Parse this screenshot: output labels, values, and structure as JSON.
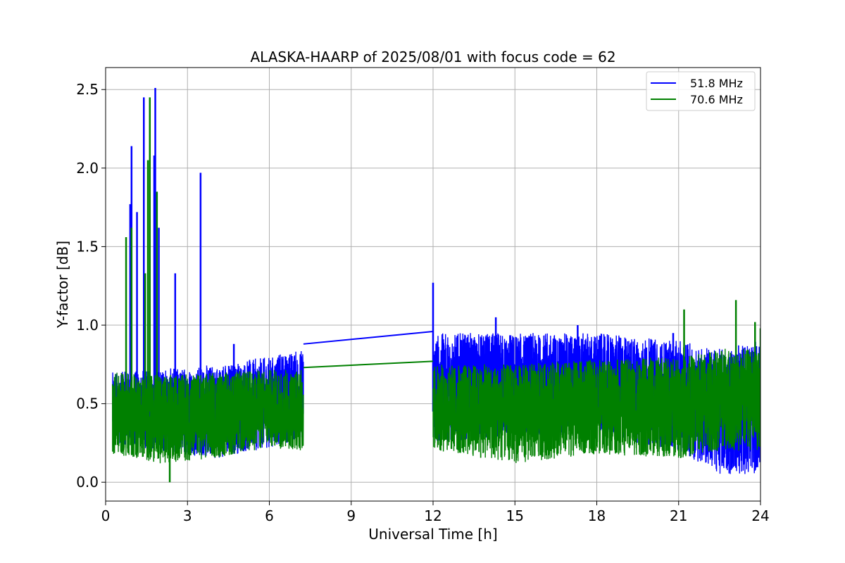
{
  "chart_data": {
    "type": "line",
    "title": "ALASKA-HAARP of 2025/08/01 with focus code = 62",
    "xlabel": "Universal Time [h]",
    "ylabel": "Y-factor [dB]",
    "xlim": [
      0,
      24
    ],
    "ylim": [
      -0.12,
      2.64
    ],
    "xticks": [
      0,
      3,
      6,
      9,
      12,
      15,
      18,
      21,
      24
    ],
    "xtick_labels": [
      "0",
      "3",
      "6",
      "9",
      "12",
      "15",
      "18",
      "21",
      "24"
    ],
    "yticks": [
      0.0,
      0.5,
      1.0,
      1.5,
      2.0,
      2.5
    ],
    "ytick_labels": [
      "0.0",
      "0.5",
      "1.0",
      "1.5",
      "2.0",
      "2.5"
    ],
    "grid": true,
    "legend_position": "top-right",
    "series": [
      {
        "name": "51.8 MHz",
        "color": "#0000ff",
        "segments": [
          {
            "x_range": [
              0.25,
              7.25
            ],
            "band_low": [
              0.25,
              0.2,
              0.15,
              0.22,
              0.28
            ],
            "band_high": [
              0.7,
              0.72,
              0.75,
              0.8,
              0.85
            ],
            "band_knots": [
              0.25,
              2,
              4,
              6,
              7.25
            ]
          },
          {
            "x_range": [
              12.0,
              24.0
            ],
            "band_low": [
              0.25,
              0.3,
              0.3,
              0.2,
              0.05,
              0.05
            ],
            "band_high": [
              0.95,
              0.95,
              0.95,
              0.9,
              0.85,
              0.9
            ],
            "band_knots": [
              12,
              15,
              18,
              21,
              22.5,
              24
            ]
          }
        ],
        "gap_line": [
          [
            7.25,
            0.88
          ],
          [
            12.0,
            0.96
          ]
        ],
        "spikes": [
          [
            0.95,
            2.14
          ],
          [
            0.9,
            1.77
          ],
          [
            1.15,
            1.72
          ],
          [
            1.4,
            2.45
          ],
          [
            1.82,
            2.51
          ],
          [
            1.78,
            2.08
          ],
          [
            1.95,
            1.62
          ],
          [
            2.55,
            1.33
          ],
          [
            3.48,
            1.97
          ],
          [
            12.0,
            1.27
          ],
          [
            4.7,
            0.88
          ],
          [
            14.3,
            1.05
          ],
          [
            17.3,
            1.0
          ],
          [
            20.8,
            0.95
          ]
        ]
      },
      {
        "name": "70.6 MHz",
        "color": "#008000",
        "segments": [
          {
            "x_range": [
              0.25,
              7.25
            ],
            "band_low": [
              0.18,
              0.12,
              0.15,
              0.22,
              0.2
            ],
            "band_high": [
              0.7,
              0.68,
              0.7,
              0.72,
              0.72
            ],
            "band_knots": [
              0.25,
              2,
              4,
              6,
              7.25
            ]
          },
          {
            "x_range": [
              12.0,
              24.0
            ],
            "band_low": [
              0.2,
              0.12,
              0.18,
              0.15,
              0.2,
              0.2
            ],
            "band_high": [
              0.75,
              0.75,
              0.78,
              0.8,
              0.85,
              0.85
            ],
            "band_knots": [
              12,
              15,
              18,
              21,
              22.5,
              24
            ]
          }
        ],
        "gap_line": [
          [
            7.25,
            0.73
          ],
          [
            12.0,
            0.77
          ]
        ],
        "spikes": [
          [
            0.75,
            1.56
          ],
          [
            0.95,
            1.62
          ],
          [
            1.45,
            1.33
          ],
          [
            1.55,
            2.05
          ],
          [
            1.62,
            2.45
          ],
          [
            1.88,
            1.85
          ],
          [
            21.2,
            1.1
          ],
          [
            23.1,
            1.16
          ],
          [
            23.8,
            1.02
          ],
          [
            24.0,
            0.98
          ],
          [
            2.35,
            0.0
          ]
        ]
      }
    ]
  }
}
